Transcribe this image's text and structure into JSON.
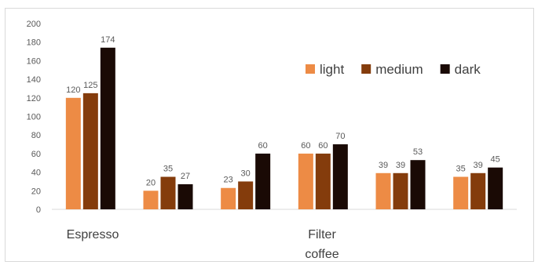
{
  "chart_data": {
    "type": "bar",
    "categories": [
      "Espresso",
      "",
      "",
      "Filter coffee",
      "",
      ""
    ],
    "category_labels": {
      "espresso": "Espresso",
      "filter_line1": "Filter",
      "filter_line2": "coffee"
    },
    "series": [
      {
        "name": "light",
        "values": [
          120,
          20,
          23,
          60,
          39,
          35
        ],
        "color": "#ED8B45"
      },
      {
        "name": "medium",
        "values": [
          125,
          35,
          30,
          60,
          39,
          39
        ],
        "color": "#843C0C"
      },
      {
        "name": "dark",
        "values": [
          174,
          27,
          60,
          70,
          53,
          45
        ],
        "color": "#1A0A05"
      }
    ],
    "y_ticks": [
      "0",
      "20",
      "40",
      "60",
      "80",
      "100",
      "120",
      "140",
      "160",
      "180",
      "200"
    ],
    "ylim": [
      0,
      200
    ],
    "grid": false,
    "legend_position": "top-right",
    "title": "",
    "xlabel": "",
    "ylabel": ""
  }
}
